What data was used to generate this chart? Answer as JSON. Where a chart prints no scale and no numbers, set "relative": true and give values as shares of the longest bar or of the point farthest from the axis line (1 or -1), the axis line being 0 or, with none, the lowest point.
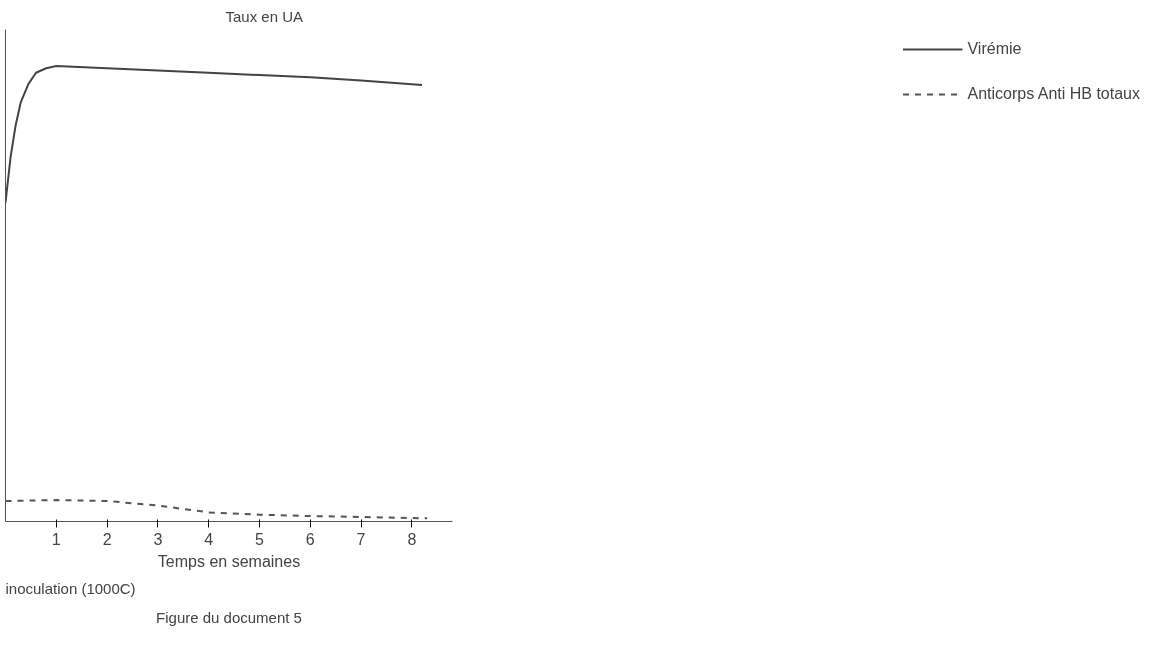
{
  "chart_data": {
    "type": "line",
    "relative": true,
    "ylabel": "Taux en UA",
    "xlabel": "Temps en semaines",
    "xlim": [
      0,
      8.8
    ],
    "xticks": [
      1,
      2,
      3,
      4,
      5,
      6,
      7,
      8
    ],
    "tick_labels": "x",
    "grid": false,
    "legend": "right",
    "marker": "none",
    "annotations": [
      "inoculation (1000C)",
      "Figure du document 5"
    ],
    "series": [
      {
        "name": "Virémie",
        "color": "#444444",
        "line_style": "solid",
        "x": [
          0,
          0.1,
          0.2,
          0.3,
          0.45,
          0.6,
          0.8,
          1,
          2,
          3,
          4,
          5,
          6,
          7,
          8.2
        ],
        "values": [
          0.7,
          0.8,
          0.87,
          0.92,
          0.96,
          0.985,
          0.995,
          1.0,
          0.995,
          0.99,
          0.985,
          0.98,
          0.975,
          0.968,
          0.958
        ]
      },
      {
        "name": "Anticorps Anti HB totaux",
        "color": "#555555",
        "line_style": "dashed",
        "x": [
          0,
          1,
          2,
          3,
          4,
          5,
          6,
          7,
          8.3
        ],
        "values": [
          0.045,
          0.047,
          0.045,
          0.035,
          0.02,
          0.015,
          0.012,
          0.01,
          0.007
        ]
      }
    ]
  }
}
